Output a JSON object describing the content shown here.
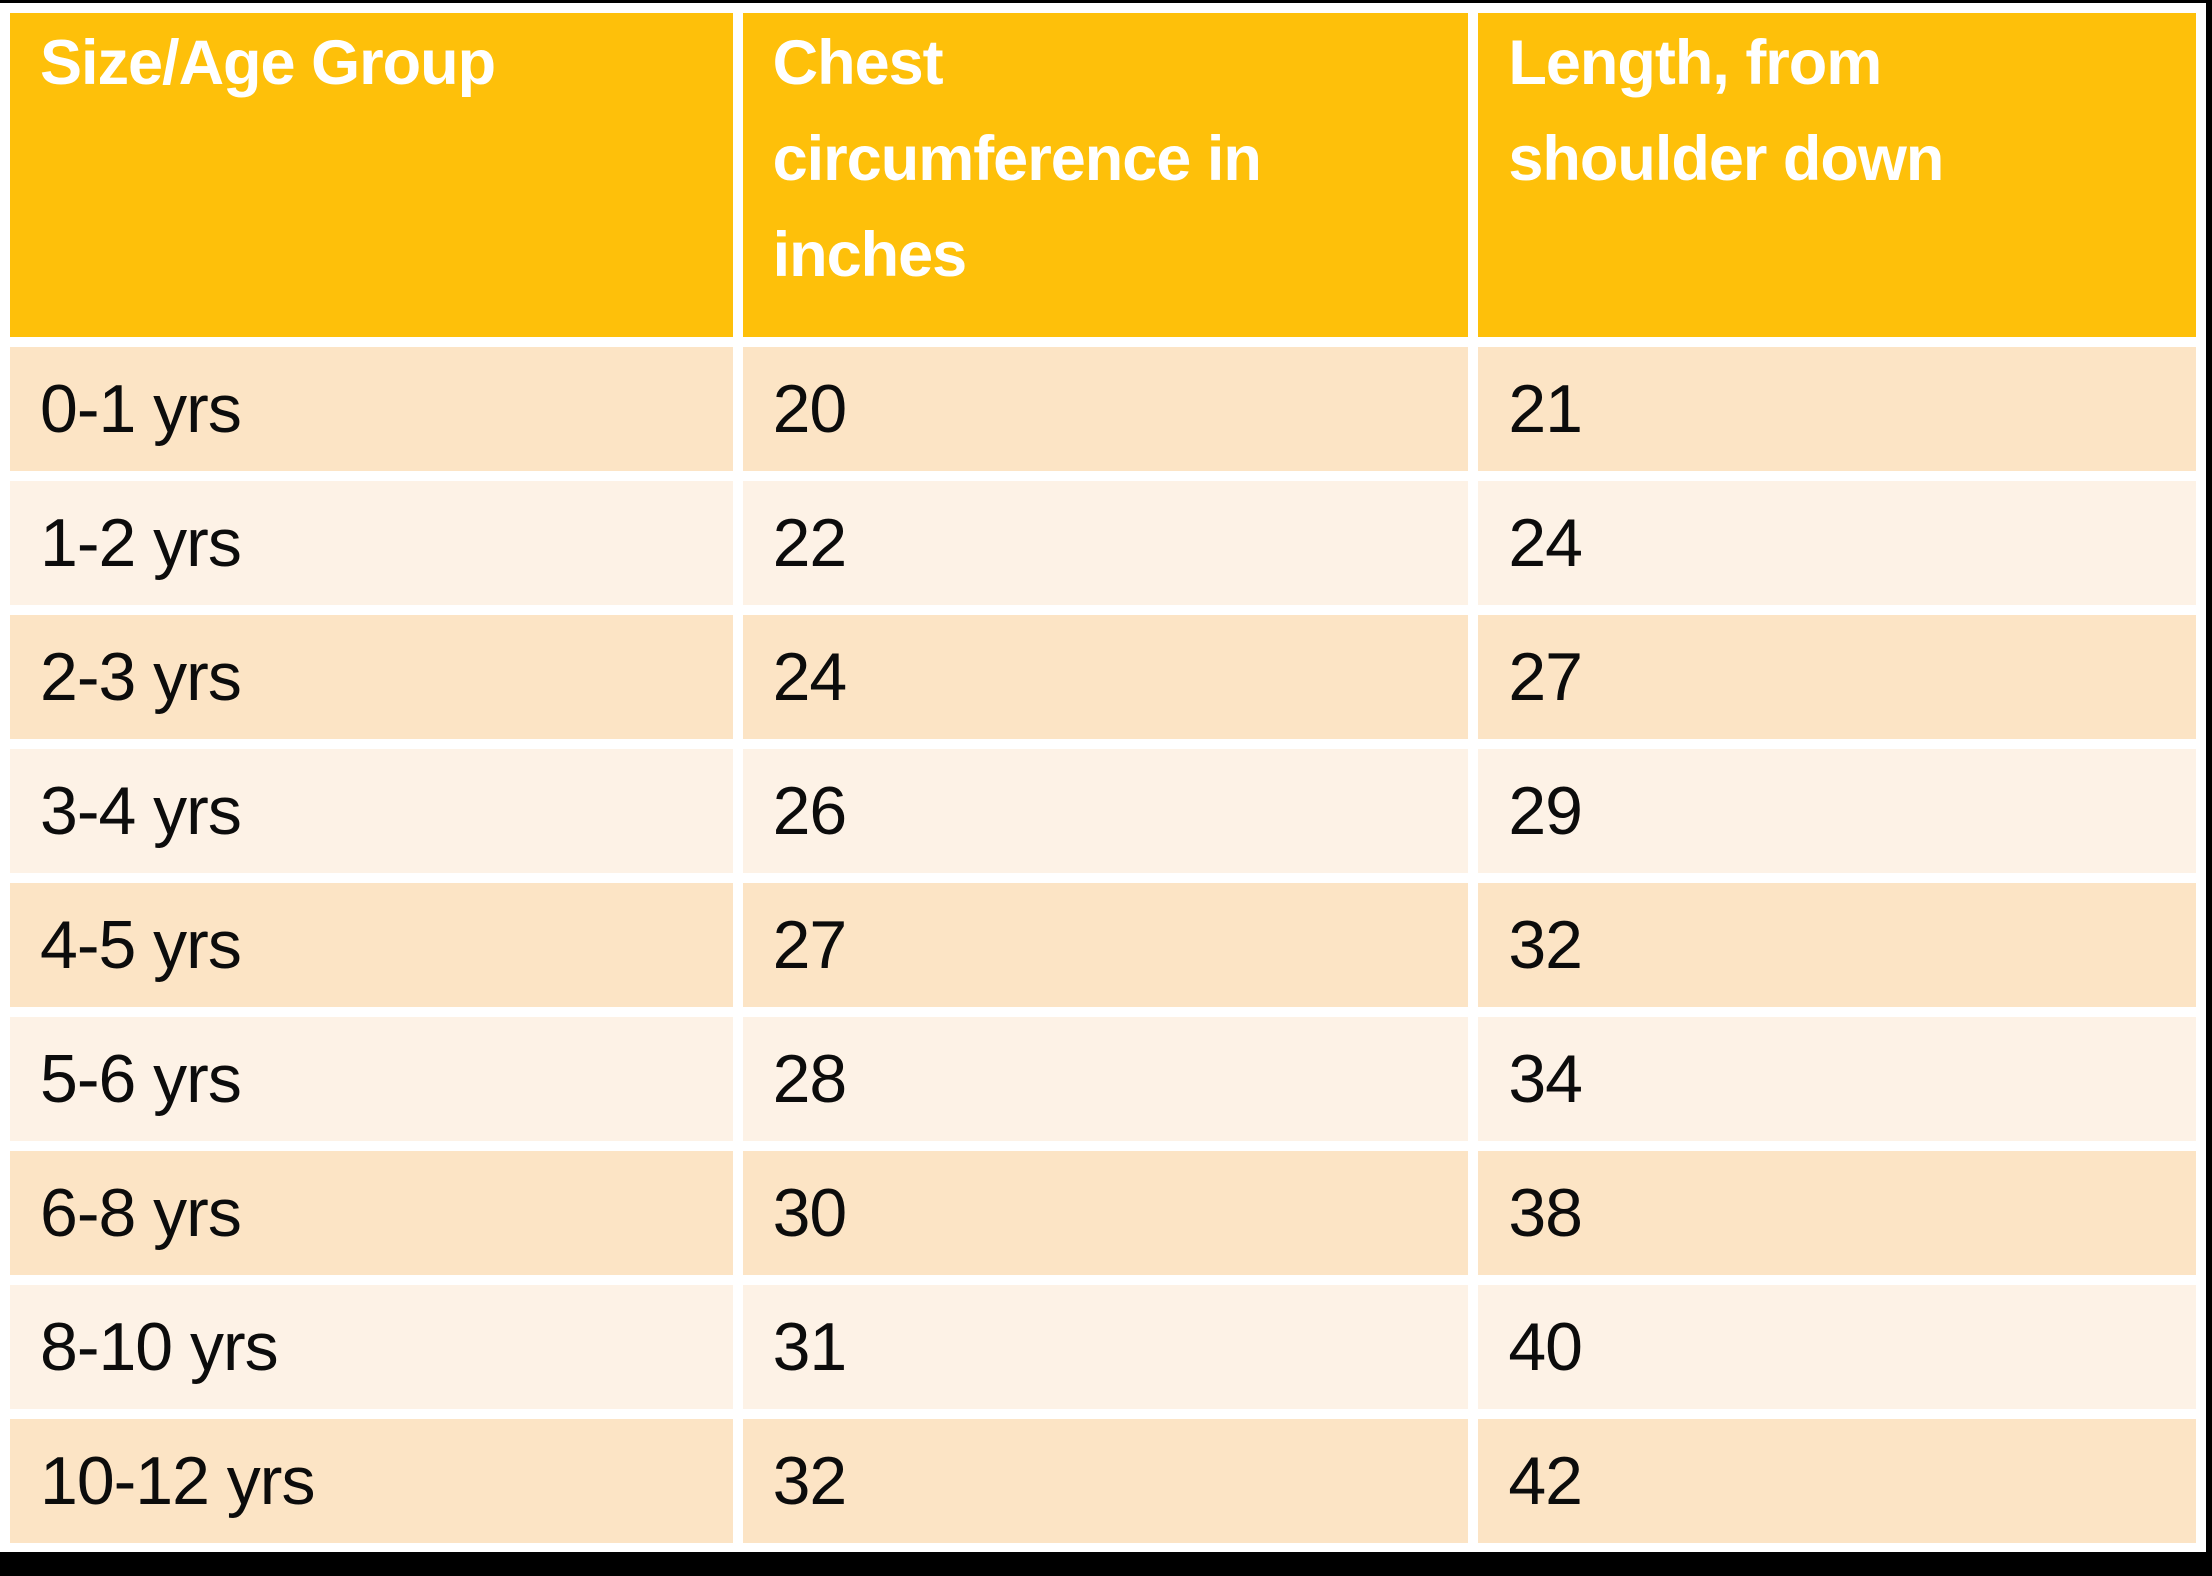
{
  "header": {
    "col1": "Size/Age Group",
    "col2": "Chest circumference in inches",
    "col3": "Length, from shoulder down"
  },
  "rows": [
    {
      "size": "0-1 yrs",
      "chest": "20",
      "length": "21"
    },
    {
      "size": "1-2 yrs",
      "chest": "22",
      "length": "24"
    },
    {
      "size": "2-3 yrs",
      "chest": "24",
      "length": "27"
    },
    {
      "size": "3-4 yrs",
      "chest": "26",
      "length": "29"
    },
    {
      "size": "4-5 yrs",
      "chest": "27",
      "length": "32"
    },
    {
      "size": "5-6 yrs",
      "chest": "28",
      "length": "34"
    },
    {
      "size": "6-8 yrs",
      "chest": "30",
      "length": "38"
    },
    {
      "size": "8-10 yrs",
      "chest": "31",
      "length": "40"
    },
    {
      "size": "10-12 yrs",
      "chest": "32",
      "length": "42"
    }
  ],
  "colors": {
    "header_background": "#FEC00A",
    "band_dark": "#FCE4C5",
    "band_light": "#FDF2E6",
    "header_text": "#FFFFFF",
    "body_text": "#0C0C0C",
    "letterbox": "#000000"
  },
  "chart_data": {
    "type": "table",
    "title": "",
    "columns": [
      "Size/Age Group",
      "Chest circumference in inches",
      "Length, from shoulder down"
    ],
    "rows": [
      [
        "0-1 yrs",
        20,
        21
      ],
      [
        "1-2 yrs",
        22,
        24
      ],
      [
        "2-3 yrs",
        24,
        27
      ],
      [
        "3-4 yrs",
        26,
        29
      ],
      [
        "4-5 yrs",
        27,
        32
      ],
      [
        "5-6 yrs",
        28,
        34
      ],
      [
        "6-8 yrs",
        30,
        38
      ],
      [
        "8-10 yrs",
        31,
        40
      ],
      [
        "10-12 yrs",
        32,
        42
      ]
    ],
    "layout_hints": {
      "banded_rows": true,
      "first_band": "dark",
      "header_fill": "#FEC00A",
      "grid": "white-gaps"
    }
  }
}
